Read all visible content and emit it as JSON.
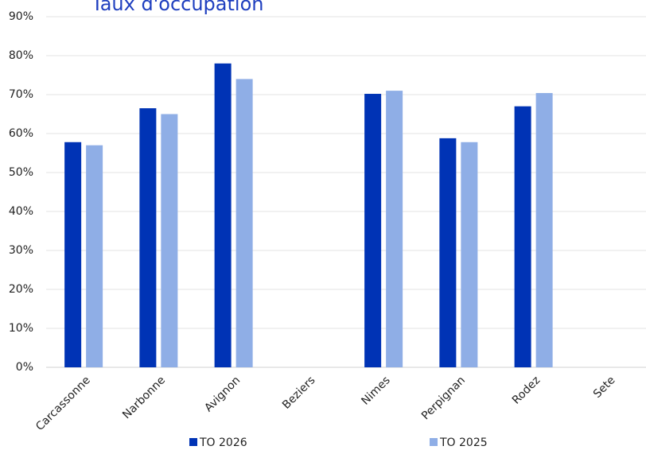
{
  "chart_data": {
    "type": "bar",
    "title": "Taux d'occupation",
    "categories": [
      "Carcassonne",
      "Narbonne",
      "Avignon",
      "Beziers",
      "Nimes",
      "Perpignan",
      "Rodez",
      "Sete"
    ],
    "series": [
      {
        "name": "TO 2026",
        "color": "#0033b5",
        "values": [
          57.8,
          66.5,
          78,
          null,
          70.2,
          58.8,
          67,
          null
        ]
      },
      {
        "name": "TO 2025",
        "color": "#8faee6",
        "values": [
          57,
          65,
          74,
          null,
          71,
          57.8,
          70.4,
          null
        ]
      }
    ],
    "ylim": [
      0,
      90
    ],
    "yticks": [
      {
        "value": 0,
        "label": "0%"
      },
      {
        "value": 10,
        "label": "10%"
      },
      {
        "value": 20,
        "label": "20%"
      },
      {
        "value": 30,
        "label": "30%"
      },
      {
        "value": 40,
        "label": "40%"
      },
      {
        "value": 50,
        "label": "50%"
      },
      {
        "value": 60,
        "label": "60%"
      },
      {
        "value": 70,
        "label": "70%"
      },
      {
        "value": 80,
        "label": "80%"
      },
      {
        "value": 90,
        "label": "90%"
      }
    ],
    "grid": true
  }
}
